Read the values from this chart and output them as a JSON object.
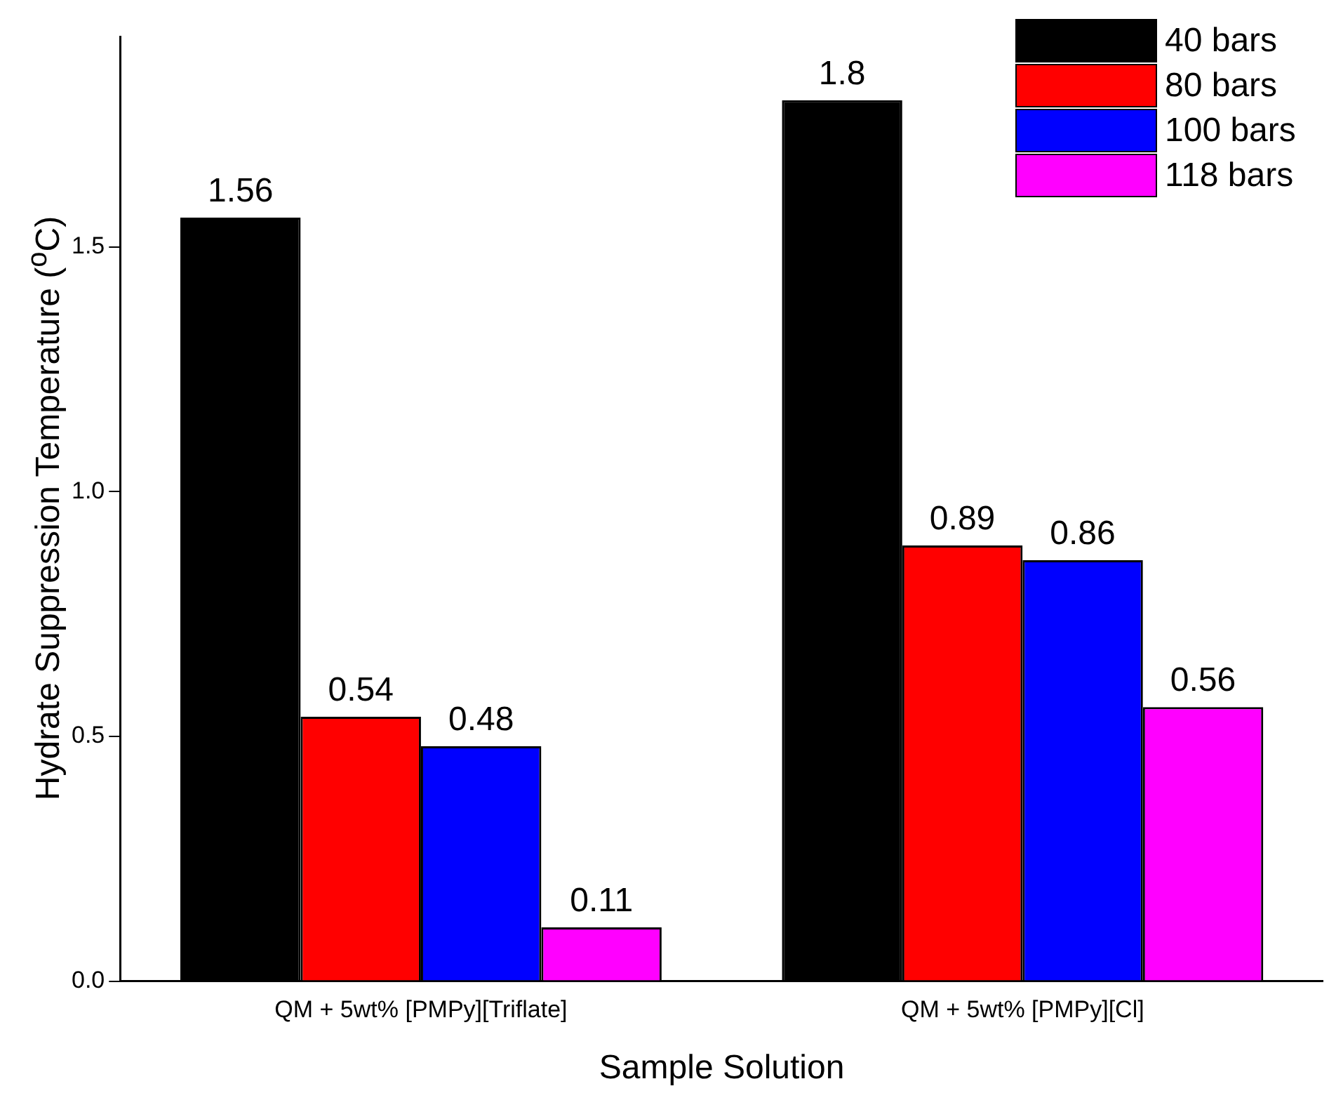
{
  "chart_data": {
    "type": "bar",
    "xlabel": "Sample Solution",
    "ylabel": "Hydrate Suppression Temperature ($^{o}$C)",
    "categories": [
      "QM + 5wt% [PMPy][Triflate]",
      "QM + 5wt% [PMPy][Cl]"
    ],
    "series": [
      {
        "name": "40 bars",
        "color": "#000000",
        "values": [
          1.56,
          1.8
        ]
      },
      {
        "name": "80 bars",
        "color": "#ff0000",
        "values": [
          0.54,
          0.89
        ]
      },
      {
        "name": "100 bars",
        "color": "#0000ff",
        "values": [
          0.48,
          0.86
        ]
      },
      {
        "name": "118 bars",
        "color": "#ff00ff",
        "values": [
          0.11,
          0.56
        ]
      }
    ],
    "ylim": [
      0,
      1.93
    ],
    "yticks": [
      {
        "value": 0,
        "label": "0.0"
      },
      {
        "value": 0.5,
        "label": "0.5"
      },
      {
        "value": 1,
        "label": "1.0"
      },
      {
        "value": 1.5,
        "label": "1.5"
      }
    ],
    "data_labels": true,
    "grid": false,
    "legend": "top right"
  }
}
